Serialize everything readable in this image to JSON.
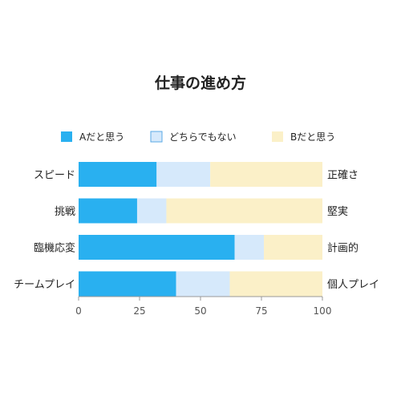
{
  "chart_data": {
    "type": "bar",
    "orientation": "horizontal",
    "stacked": true,
    "title": "仕事の進め方",
    "categories": [
      "スピード",
      "挑戦",
      "臨機応変",
      "チームプレイ"
    ],
    "right_labels": [
      "正確さ",
      "堅実",
      "計画的",
      "個人プレイ"
    ],
    "series": [
      {
        "name": "Aだと思う",
        "color": "#29b0f0",
        "values": [
          32,
          24,
          64,
          40
        ]
      },
      {
        "name": "どちらでもない",
        "color": "#d6e9fb",
        "values": [
          22,
          12,
          12,
          22
        ]
      },
      {
        "name": "Bだと思う",
        "color": "#fbf0c8",
        "values": [
          46,
          64,
          24,
          38
        ]
      }
    ],
    "xlim": [
      0,
      100
    ],
    "xticks": [
      "0",
      "25",
      "50",
      "75",
      "100"
    ],
    "legend": "top",
    "grid": false
  }
}
